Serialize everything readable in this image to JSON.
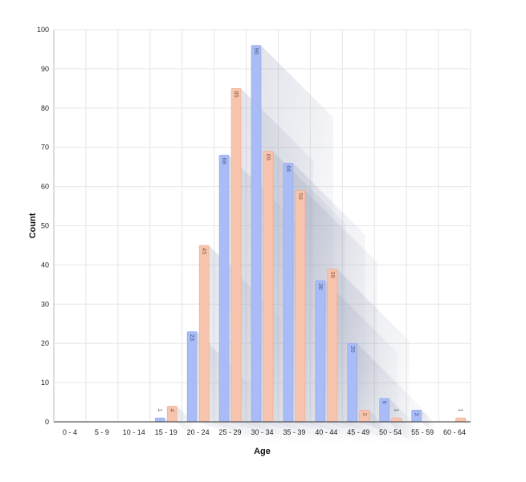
{
  "chart_data": {
    "type": "bar",
    "categories": [
      "0 - 4",
      "5 - 9",
      "10 - 14",
      "15 - 19",
      "20 - 24",
      "25 - 29",
      "30 - 34",
      "35 - 39",
      "40 - 44",
      "45 - 49",
      "50 - 54",
      "55 - 59",
      "60 - 64"
    ],
    "series": [
      {
        "values": [
          0,
          0,
          0,
          1,
          23,
          68,
          96,
          66,
          36,
          20,
          6,
          3,
          0
        ],
        "color": "#a9bcf5"
      },
      {
        "values": [
          0,
          0,
          0,
          4,
          45,
          85,
          69,
          59,
          39,
          3,
          1,
          0,
          1
        ],
        "color": "#f9c4ad"
      }
    ],
    "xlabel": "Age",
    "ylabel": "Count",
    "ylim": [
      0,
      100
    ],
    "yticks": [
      0,
      10,
      20,
      30,
      40,
      50,
      60,
      70,
      80,
      90,
      100
    ],
    "grid": true,
    "data_labels": true
  }
}
